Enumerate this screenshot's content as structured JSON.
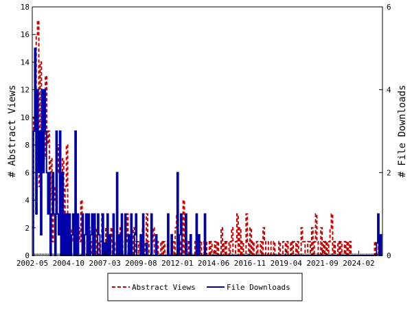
{
  "chart_data": {
    "type": "line",
    "ylabel_left": "# Abstract Views",
    "ylabel_right": "# File Downloads",
    "x_tick_labels": [
      "2002-05",
      "2004-10",
      "2007-03",
      "2009-08",
      "2012-01",
      "2014-06",
      "2016-11",
      "2019-04",
      "2021-09",
      "2024-02"
    ],
    "x_range": [
      "2002-05",
      "2025-08"
    ],
    "y_left_range": [
      0,
      18
    ],
    "y_left_ticks": [
      "0",
      "2",
      "4",
      "6",
      "8",
      "10",
      "12",
      "14",
      "16",
      "18"
    ],
    "y_right_range": [
      0,
      6
    ],
    "y_right_ticks": [
      "0",
      "2",
      "4",
      "6"
    ],
    "grid": false,
    "legend_position": "bottom",
    "series": [
      {
        "name": "Abstract Views",
        "axis": "left",
        "color": "#cc0000",
        "style": "dashed",
        "values": [
          2,
          10,
          9,
          16,
          17,
          5,
          14,
          6,
          11,
          7,
          13,
          8,
          9,
          4,
          7,
          1,
          4,
          5,
          3,
          6,
          8,
          2,
          3,
          7,
          1,
          5,
          8,
          2,
          0,
          1,
          2,
          1,
          3,
          0,
          1,
          2,
          1,
          4,
          0,
          1,
          0,
          0,
          1,
          2,
          0,
          1,
          0,
          1,
          2,
          0,
          1,
          0,
          1,
          3,
          0,
          0,
          2,
          1,
          0,
          1,
          2,
          0,
          1,
          0,
          0,
          1,
          0,
          2,
          1,
          0,
          0,
          1,
          3,
          0,
          0,
          1,
          0,
          2,
          0,
          1,
          1,
          0,
          1,
          0,
          2,
          1,
          0,
          3,
          1,
          0,
          0,
          1,
          2,
          0,
          0,
          1,
          0,
          0,
          1,
          0,
          1,
          0,
          0,
          1,
          0,
          0,
          1,
          1,
          0,
          2,
          3,
          0,
          0,
          1,
          0,
          4,
          0,
          0,
          1,
          0,
          1,
          0,
          0,
          0,
          1,
          0,
          0,
          1,
          0,
          1,
          1,
          0,
          0,
          1,
          1,
          0,
          1,
          0,
          0,
          1,
          0,
          1,
          0,
          0,
          2,
          0,
          1,
          0,
          1,
          1,
          0,
          1,
          2,
          0,
          0,
          1,
          3,
          0,
          2,
          0,
          1,
          0,
          0,
          3,
          1,
          0,
          2,
          0,
          1,
          0,
          0,
          1,
          0,
          0,
          1,
          0,
          2,
          1,
          0,
          0,
          1,
          1,
          0,
          0,
          1,
          0,
          0,
          0,
          1,
          0,
          0,
          1,
          1,
          0,
          1,
          0,
          0,
          1,
          0,
          1,
          1,
          0,
          1,
          0,
          0,
          2,
          1,
          1,
          0,
          0,
          1,
          1,
          0,
          2,
          0,
          1,
          3,
          1,
          0,
          0,
          2,
          0,
          1,
          0,
          1,
          0,
          1,
          2,
          3,
          0,
          1,
          0,
          0,
          1,
          0,
          1,
          0,
          0,
          1,
          0,
          1,
          0,
          1,
          0,
          0,
          0,
          0,
          0,
          0,
          0,
          0,
          0,
          0,
          0,
          0,
          0,
          0,
          0,
          0,
          0,
          0,
          1,
          0,
          0,
          1,
          0,
          0
        ]
      },
      {
        "name": "File Downloads",
        "axis": "right",
        "color": "#0000aa",
        "style": "solid",
        "values": [
          0,
          3,
          5,
          1,
          4,
          2,
          3,
          0.5,
          4,
          2,
          4,
          3,
          2,
          1,
          2,
          0,
          1,
          2,
          1,
          0,
          3,
          1,
          0.5,
          3,
          0,
          2,
          0,
          1,
          0,
          1,
          0,
          1,
          0,
          0.5,
          1,
          0,
          3,
          0,
          1,
          0,
          0,
          0,
          1,
          0,
          0.5,
          1,
          0,
          1,
          0,
          0.5,
          1,
          0,
          1,
          0,
          0,
          1,
          0.5,
          0,
          0,
          1,
          0,
          0.3,
          0,
          1,
          0,
          0.5,
          0,
          0,
          1,
          0,
          0,
          2,
          0,
          0.5,
          0,
          1,
          0,
          0,
          1,
          0,
          0,
          0.5,
          0,
          1,
          0,
          0,
          0.5,
          1,
          0,
          0,
          0,
          0.5,
          0,
          1,
          0,
          0,
          0.3,
          0,
          0,
          0,
          1,
          0,
          0,
          0,
          0.5,
          0,
          0,
          0,
          0,
          0,
          0,
          0,
          0,
          0,
          1,
          0,
          0,
          0.5,
          0,
          0,
          0,
          0,
          2,
          0,
          0.5,
          1,
          0,
          0,
          0,
          1,
          0,
          0,
          0,
          0.5,
          0,
          0,
          0,
          0,
          1,
          0,
          0.5,
          0,
          0,
          0,
          0,
          1,
          0,
          0,
          0,
          0,
          0,
          0,
          0,
          0,
          0,
          0,
          0,
          0,
          0,
          0,
          0,
          0,
          0,
          0,
          0,
          0,
          0,
          0,
          0,
          0,
          0,
          0,
          0,
          0,
          0,
          0,
          0,
          0,
          0,
          0,
          0,
          0,
          0,
          0,
          0,
          0,
          0,
          0,
          0,
          0,
          0,
          0,
          0,
          0,
          0,
          0,
          0,
          0,
          0,
          0,
          0,
          0,
          0,
          0,
          0,
          0,
          0,
          0,
          0,
          0,
          0,
          0,
          0,
          0,
          0,
          0,
          0,
          0,
          0,
          0,
          0,
          0,
          0,
          0,
          0,
          0,
          0,
          0,
          0,
          0,
          0,
          0,
          0,
          0,
          0,
          0,
          0,
          0,
          0,
          0,
          0,
          0,
          0,
          0,
          0,
          0,
          0,
          0,
          0,
          0,
          0,
          0,
          0,
          0,
          0,
          0,
          0,
          0,
          0,
          0,
          0,
          0,
          0,
          0,
          0,
          0,
          0,
          0,
          0,
          0,
          0,
          0,
          0,
          0,
          0,
          0,
          0,
          0,
          0,
          0,
          0,
          0,
          0,
          0,
          0,
          0,
          0,
          0,
          0,
          0,
          0.3,
          1,
          0,
          0.5,
          0
        ]
      }
    ]
  }
}
